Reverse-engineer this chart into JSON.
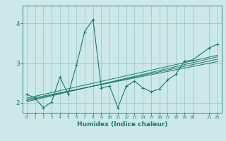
{
  "title": "",
  "xlabel": "Humidex (Indice chaleur)",
  "bg_color": "#cce8e8",
  "grid_color": "#99cccc",
  "line_color": "#1a7a6a",
  "x_ticks": [
    0,
    1,
    2,
    3,
    4,
    5,
    6,
    7,
    8,
    9,
    10,
    11,
    12,
    13,
    14,
    15,
    16,
    17,
    18,
    19,
    20,
    22,
    23
  ],
  "x_tick_labels": [
    "0",
    "1",
    "2",
    "3",
    "4",
    "5",
    "6",
    "7",
    "8",
    "9",
    "10",
    "11",
    "12",
    "13",
    "14",
    "15",
    "16",
    "17",
    "18",
    "19",
    "20",
    "22",
    "23"
  ],
  "ylim": [
    1.75,
    4.45
  ],
  "xlim": [
    -0.5,
    23.5
  ],
  "yticks": [
    2,
    3,
    4
  ],
  "scatter_x": [
    0,
    1,
    2,
    3,
    4,
    5,
    6,
    7,
    8,
    9,
    10,
    11,
    12,
    13,
    14,
    15,
    16,
    17,
    18,
    19,
    20,
    22,
    23
  ],
  "scatter_y": [
    2.22,
    2.12,
    1.88,
    2.02,
    2.65,
    2.22,
    2.95,
    3.8,
    4.1,
    2.38,
    2.42,
    1.88,
    2.42,
    2.55,
    2.38,
    2.28,
    2.35,
    2.58,
    2.72,
    3.05,
    3.08,
    3.38,
    3.48
  ],
  "reg_lines": [
    {
      "x": [
        0,
        23
      ],
      "y": [
        2.06,
        3.1
      ]
    },
    {
      "x": [
        0,
        23
      ],
      "y": [
        2.03,
        3.16
      ]
    },
    {
      "x": [
        0,
        23
      ],
      "y": [
        2.09,
        3.04
      ]
    },
    {
      "x": [
        0,
        23
      ],
      "y": [
        2.12,
        3.2
      ]
    }
  ]
}
